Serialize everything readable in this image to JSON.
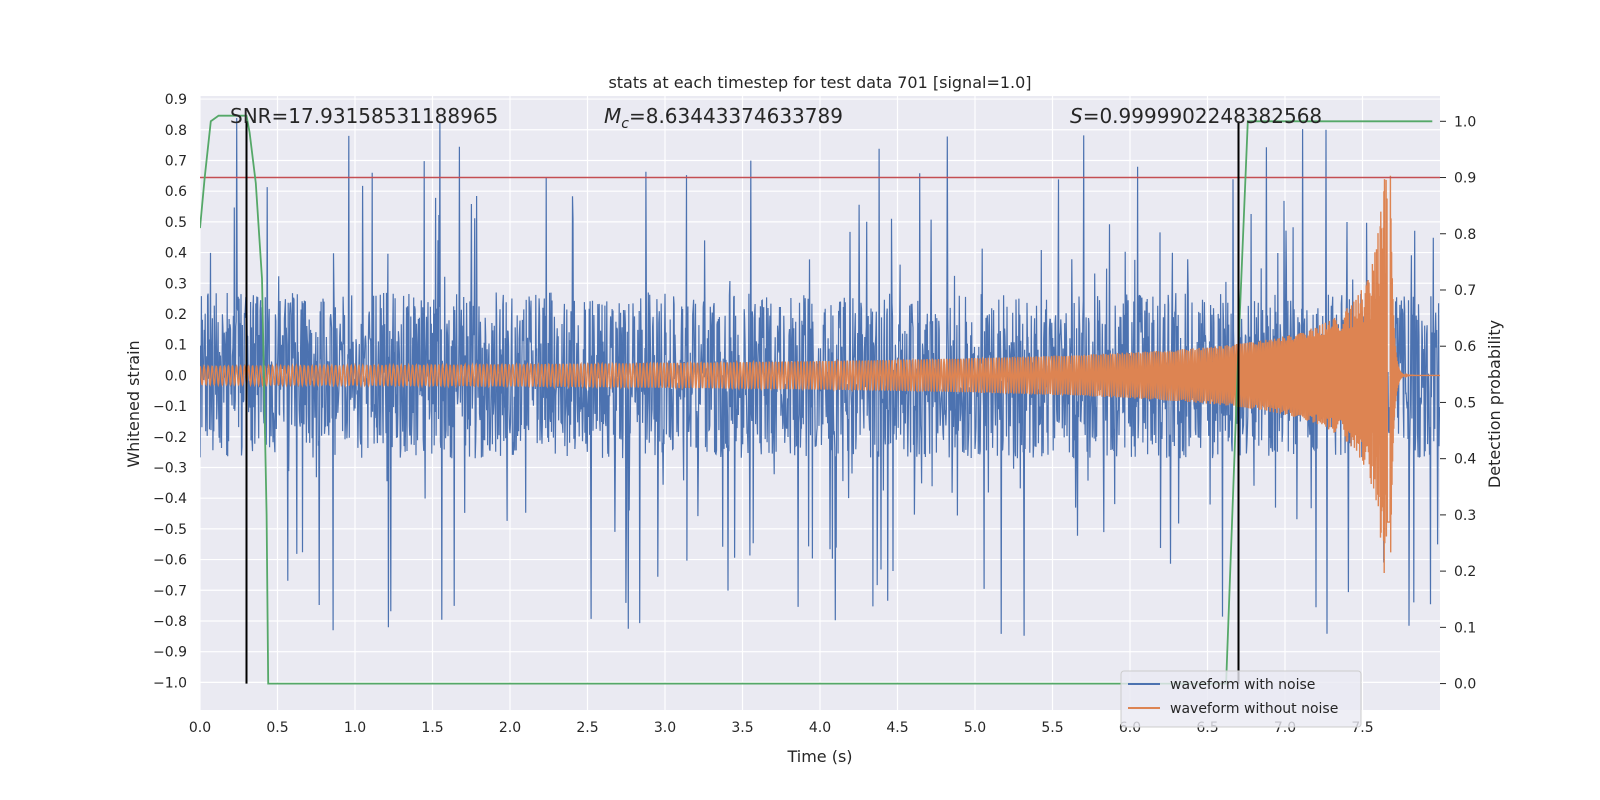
{
  "chart_data": {
    "type": "line",
    "title": "stats at each timestep for test data 701 [signal=1.0]",
    "xlabel": "Time (s)",
    "ylabel": "Whitened strain",
    "y2label": "Detection probability",
    "xlim": [
      0.0,
      8.0
    ],
    "ylim": [
      -1.09,
      0.91
    ],
    "y2lim": [
      -0.047,
      1.045
    ],
    "x_ticks": [
      "0.0",
      "0.5",
      "1.0",
      "1.5",
      "2.0",
      "2.5",
      "3.0",
      "3.5",
      "4.0",
      "4.5",
      "5.0",
      "5.5",
      "6.0",
      "6.5",
      "7.0",
      "7.5"
    ],
    "y_ticks": [
      "0.9",
      "0.8",
      "0.7",
      "0.6",
      "0.5",
      "0.4",
      "0.3",
      "0.2",
      "0.1",
      "0.0",
      "−0.1",
      "−0.2",
      "−0.3",
      "−0.4",
      "−0.5",
      "−0.6",
      "−0.7",
      "−0.8",
      "−0.9",
      "−1.0"
    ],
    "y2_ticks": [
      "1.0",
      "0.9",
      "0.8",
      "0.7",
      "0.6",
      "0.5",
      "0.4",
      "0.3",
      "0.2",
      "0.1",
      "0.0"
    ],
    "grid": true,
    "legend_position": "lower-right",
    "annotations": {
      "snr": "SNR=17.93158531188965",
      "mc_symbol": "M",
      "mc_sub": "c",
      "mc_value": "=8.63443374633789",
      "s_symbol": "S",
      "s_value": "=0.9999902248382568"
    },
    "threshold": 0.9,
    "markers_x": [
      0.3,
      6.7
    ],
    "series": [
      {
        "name": "waveform with noise",
        "color": "#4c72b0",
        "description_kind": "noise",
        "envelope": 0.27,
        "spike_peak": 0.85
      },
      {
        "name": "waveform without noise",
        "color": "#dd8452",
        "description_kind": "chirp",
        "amplitude_start": 0.03,
        "amplitude_end": 0.65,
        "merger_time": 7.68
      }
    ],
    "probability": {
      "color": "#55a868",
      "points": [
        [
          0.0,
          0.81
        ],
        [
          0.03,
          0.9
        ],
        [
          0.07,
          1.0
        ],
        [
          0.12,
          1.01
        ],
        [
          0.28,
          1.01
        ],
        [
          0.3,
          1.01
        ],
        [
          0.32,
          0.98
        ],
        [
          0.36,
          0.89
        ],
        [
          0.4,
          0.72
        ],
        [
          0.43,
          0.3
        ],
        [
          0.44,
          0.0
        ],
        [
          6.62,
          0.0
        ],
        [
          6.7,
          0.6
        ],
        [
          6.76,
          1.0
        ],
        [
          7.95,
          1.0
        ]
      ]
    },
    "colors": {
      "background": "#eaeaf2",
      "grid": "#ffffff",
      "threshold": "#c44e52",
      "marker": "#000000"
    }
  }
}
